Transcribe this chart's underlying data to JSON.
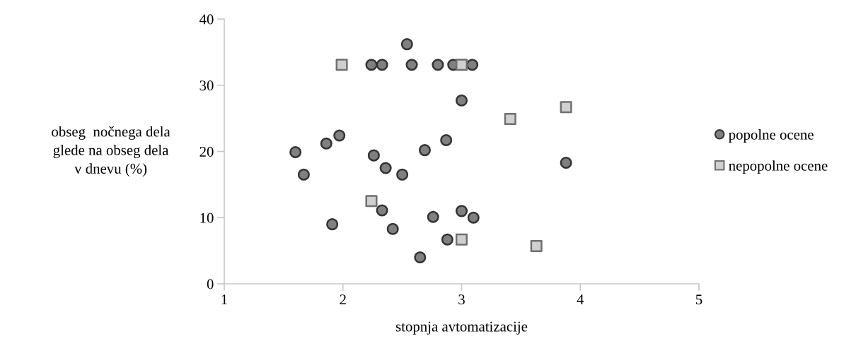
{
  "chart_data": {
    "type": "scatter",
    "xlabel": "stopnja avtomatizacije",
    "ylabel": "obseg  nočnega dela\nglede na obseg dela\nv dnevu (%)",
    "xlim": [
      1,
      5
    ],
    "xticks": [
      1,
      2,
      3,
      4,
      5
    ],
    "ylim": [
      0,
      40
    ],
    "yticks": [
      0,
      10,
      20,
      30,
      40
    ],
    "grid": false,
    "legend": "right",
    "series": [
      {
        "name": "popolne ocene",
        "color": "#808080",
        "marker": "circle",
        "x": [
          2.54,
          2.24,
          2.33,
          2.58,
          2.8,
          2.93,
          3.09,
          3.0,
          1.97,
          1.86,
          1.6,
          1.67,
          2.26,
          2.36,
          2.5,
          2.69,
          2.87,
          2.33,
          1.91,
          2.42,
          2.76,
          3.0,
          3.1,
          2.88,
          2.65,
          3.88
        ],
        "values": [
          36.2,
          33.1,
          33.1,
          33.1,
          33.1,
          33.1,
          33.1,
          27.7,
          22.4,
          21.2,
          19.9,
          16.5,
          19.4,
          17.5,
          16.5,
          20.2,
          21.7,
          11.1,
          9.0,
          8.3,
          10.1,
          11.0,
          10.0,
          6.7,
          4.0,
          18.3
        ]
      },
      {
        "name": "nepopolne ocene",
        "color": "#d0d0d0",
        "marker": "square",
        "x": [
          1.99,
          3.0,
          2.24,
          3.0,
          3.41,
          3.88,
          3.63
        ],
        "values": [
          33.1,
          33.1,
          12.5,
          6.7,
          24.9,
          26.7,
          5.7
        ]
      }
    ]
  }
}
